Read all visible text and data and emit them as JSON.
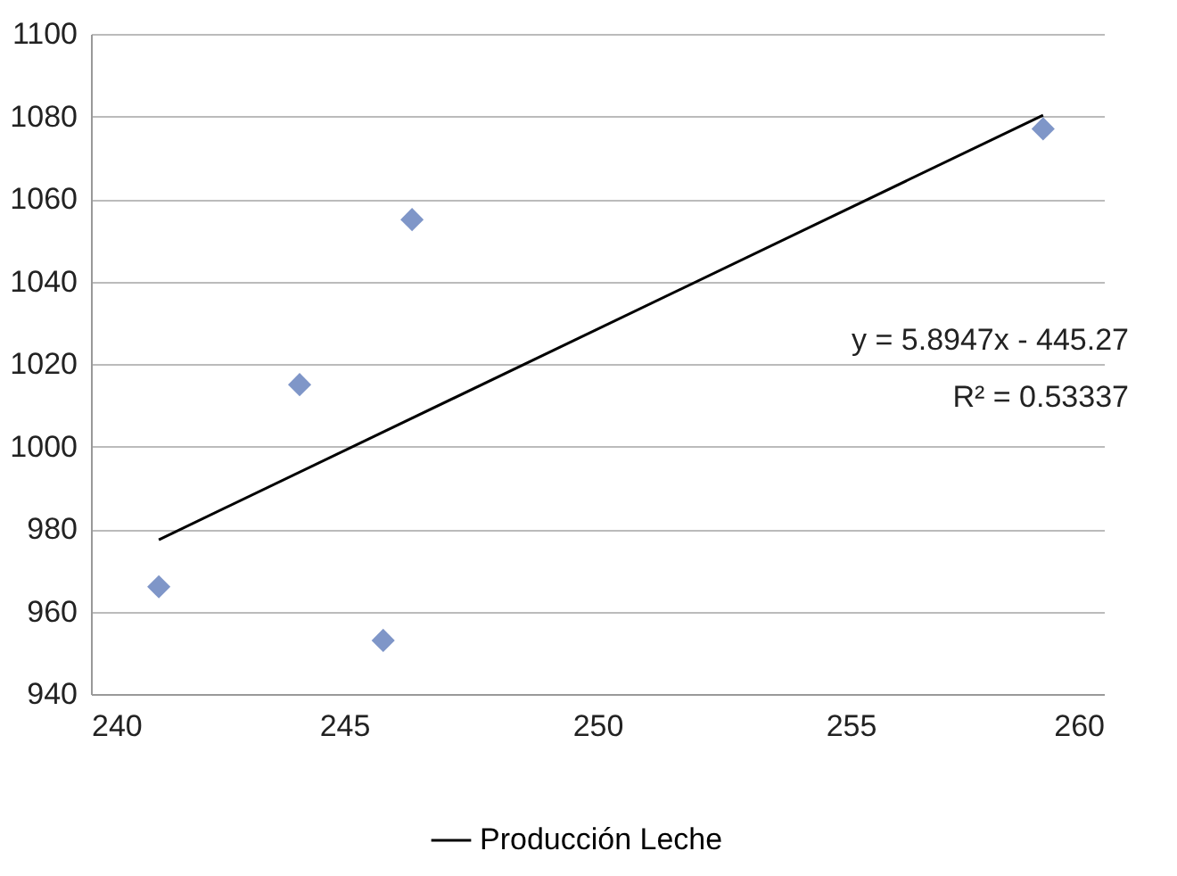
{
  "chart_data": {
    "type": "scatter",
    "series": [
      {
        "type": "scatter",
        "marker": "diamond",
        "color": "#7f96c8",
        "x": [
          241.34,
          244.12,
          246.34,
          245.77,
          258.8
        ],
        "values": [
          966,
          1015,
          1055,
          953,
          1077
        ]
      },
      {
        "type": "line",
        "marker": "none",
        "name": "Producción Leche",
        "color": "#000000",
        "x": [
          241.34,
          258.8
        ],
        "values": [
          977.4,
          1080.3
        ]
      }
    ],
    "xlim": [
      240,
      260
    ],
    "xticks": [
      240,
      245,
      250,
      255,
      260
    ],
    "ylim": [
      940,
      1100
    ],
    "yticks": [
      940,
      960,
      980,
      1000,
      1020,
      1040,
      1060,
      1080,
      1100
    ],
    "grid": "y",
    "legend": "bottom",
    "annotations": [
      "y = 5.8947x - 445.27",
      "R² = 0.53337"
    ]
  }
}
